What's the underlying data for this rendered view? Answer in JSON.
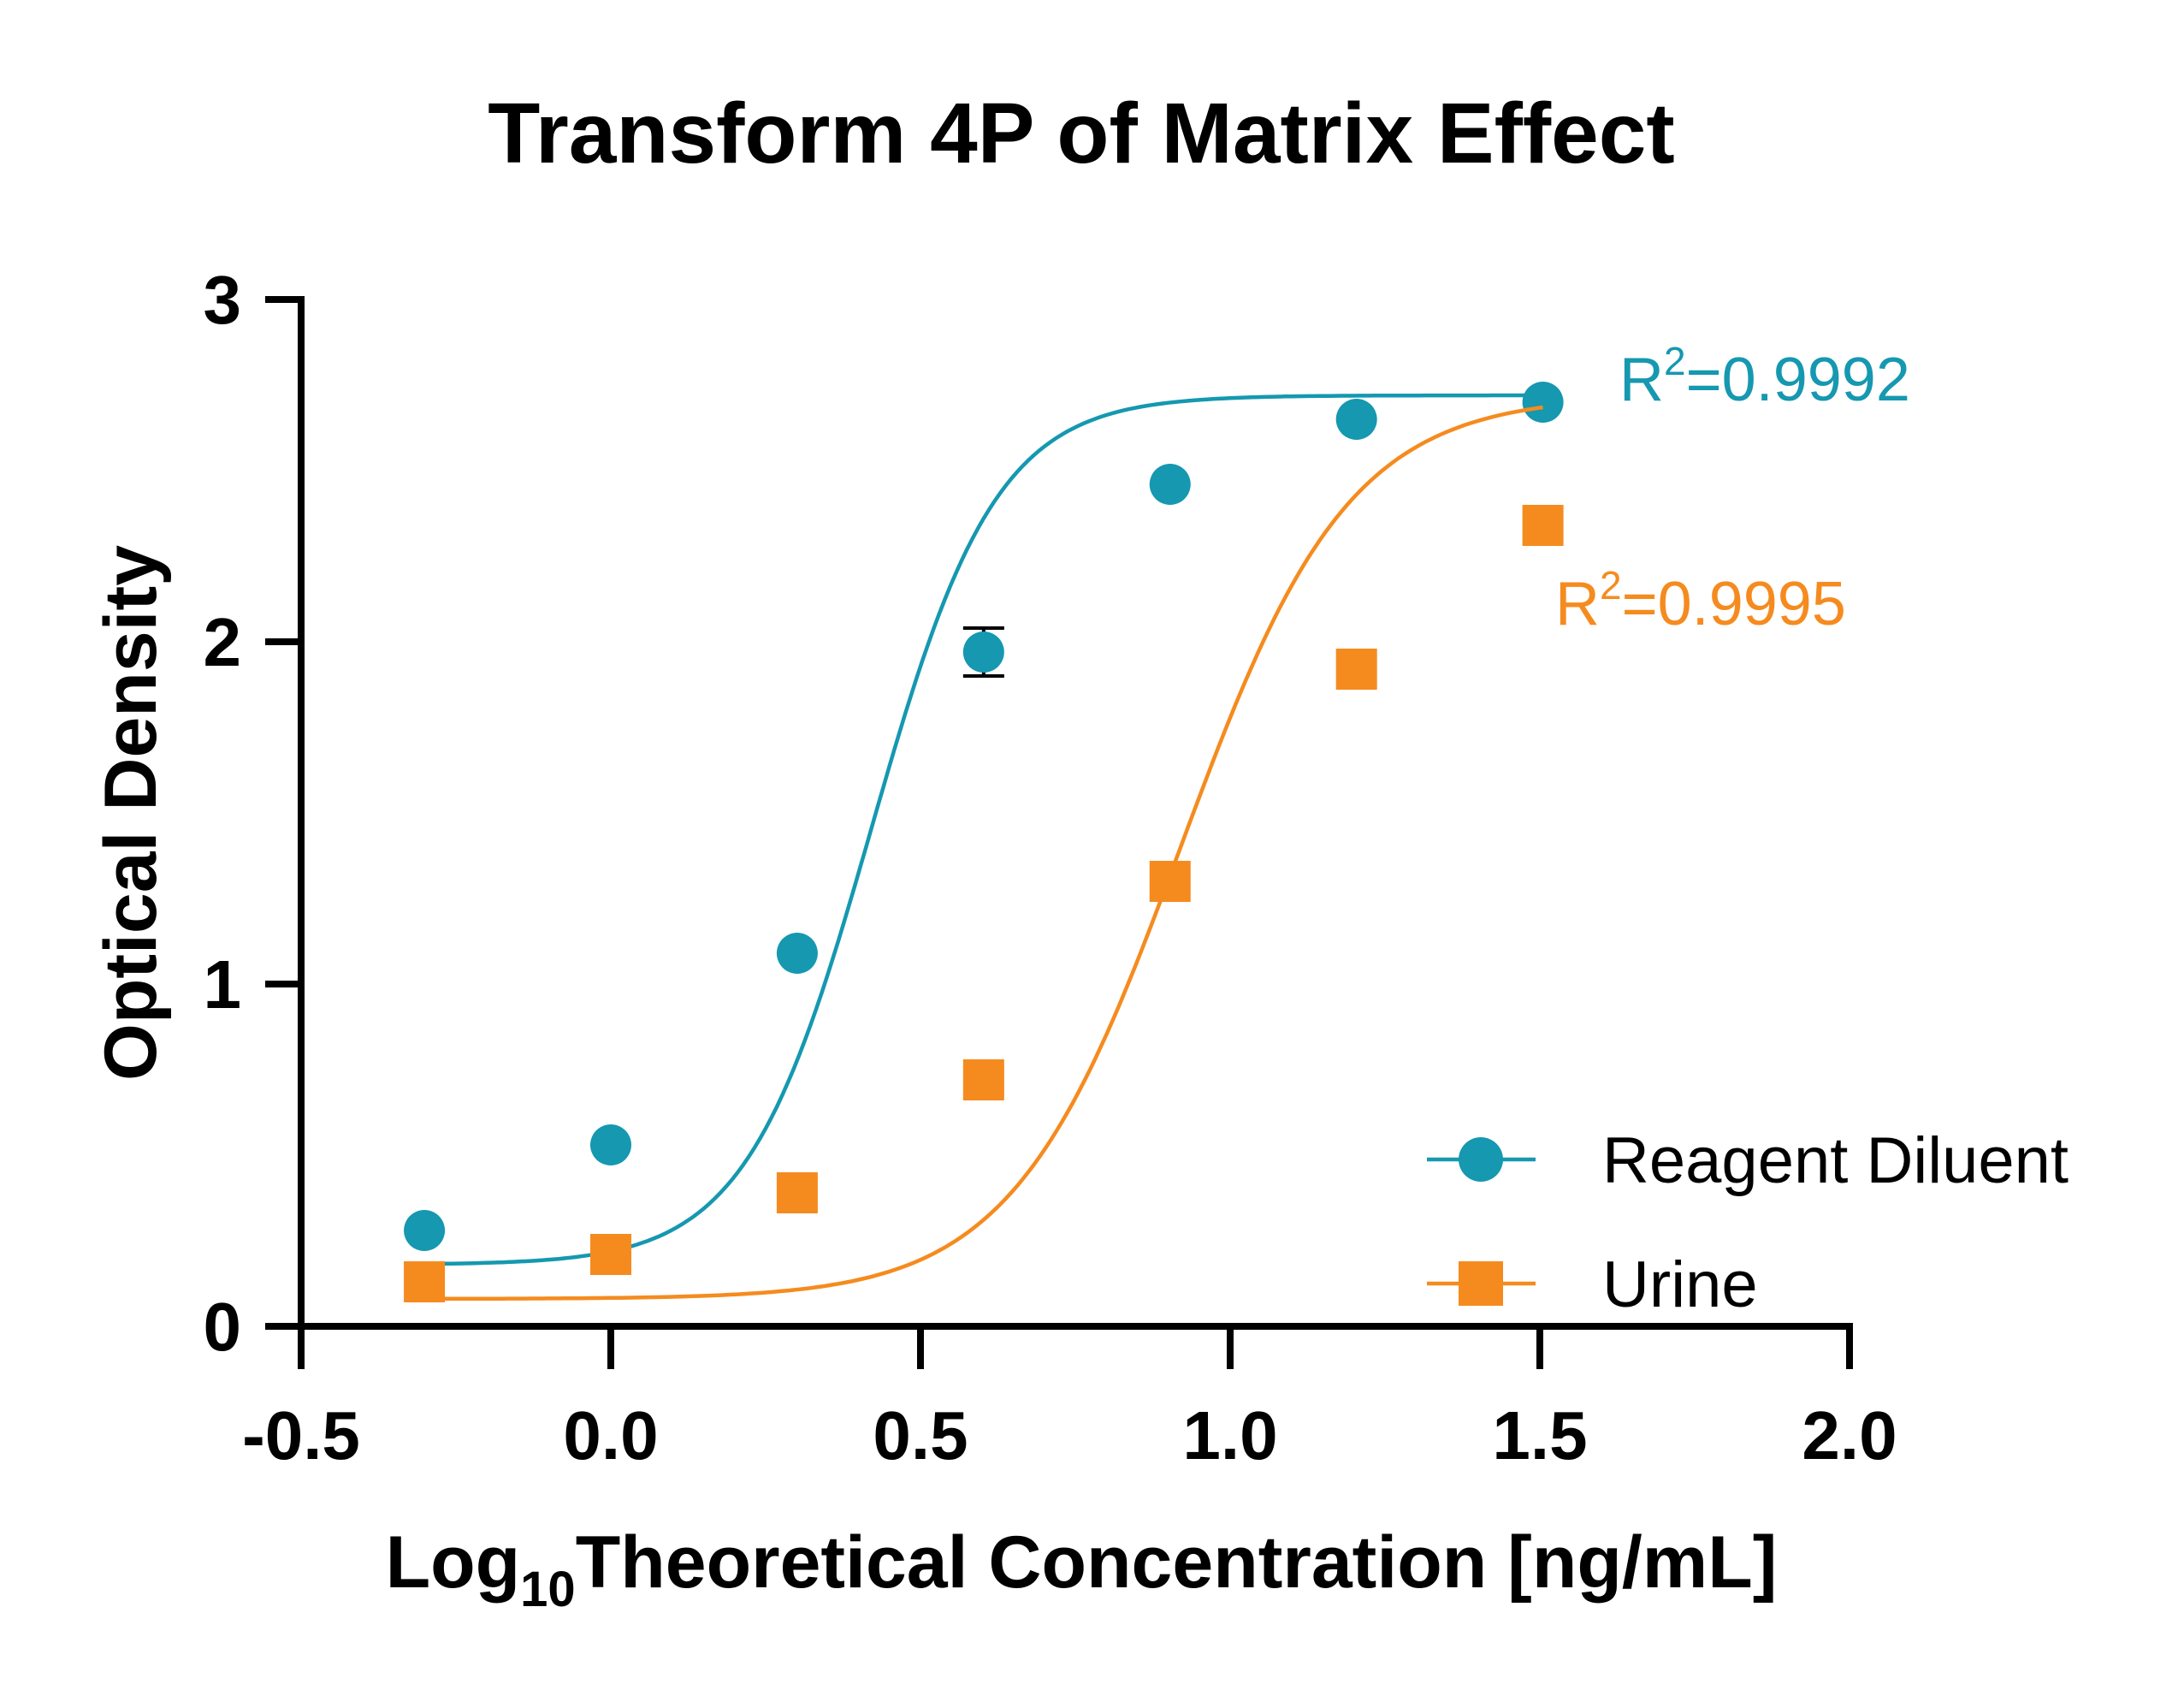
{
  "chart_data": {
    "type": "scatter",
    "title": "Transform 4P of Matrix Effect",
    "xlabel": {
      "main": "Log",
      "sub": "10",
      "rest": "Theoretical Concentration [ng/mL]"
    },
    "ylabel": "Optical Density",
    "xlim": [
      -0.5,
      2.0
    ],
    "ylim": [
      0,
      3
    ],
    "xticks": [
      -0.5,
      0.0,
      0.5,
      1.0,
      1.5,
      2.0
    ],
    "xtick_labels": [
      "-0.5",
      "0.0",
      "0.5",
      "1.0",
      "1.5",
      "2.0"
    ],
    "yticks": [
      0,
      1,
      2,
      3
    ],
    "ytick_labels": [
      "0",
      "1",
      "2",
      "3"
    ],
    "grid": false,
    "legend_position": "bottom-right",
    "series": [
      {
        "name": "Reagent Diluent",
        "marker": "circle",
        "color": "#1598B0",
        "x": [
          -0.301,
          0.0,
          0.301,
          0.602,
          0.903,
          1.204,
          1.505
        ],
        "y": [
          0.28,
          0.53,
          1.09,
          1.97,
          2.46,
          2.65,
          2.7
        ],
        "error": [
          0,
          0,
          0,
          0.07,
          0,
          0,
          0
        ],
        "fit": {
          "bottom": 0.18,
          "top": 2.72,
          "ec50": 0.42,
          "hill": 4.3
        },
        "r2_label": {
          "base": "R",
          "sup": "2",
          "rest": "=0.9992"
        }
      },
      {
        "name": "Urine",
        "marker": "square",
        "color": "#F58B1F",
        "x": [
          -0.301,
          0.0,
          0.301,
          0.602,
          0.903,
          1.204,
          1.505
        ],
        "y": [
          0.13,
          0.21,
          0.39,
          0.72,
          1.3,
          1.92,
          2.34
        ],
        "error": [
          0,
          0,
          0,
          0,
          0,
          0,
          0
        ],
        "fit": {
          "bottom": 0.08,
          "top": 2.72,
          "ec50": 0.92,
          "hill": 3.2
        },
        "r2_label": {
          "base": "R",
          "sup": "2",
          "rest": "=0.9995"
        }
      }
    ]
  }
}
